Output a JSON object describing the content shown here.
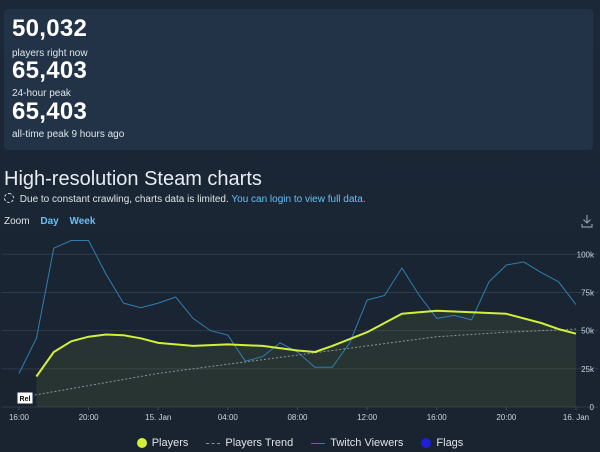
{
  "stats": {
    "current": {
      "value": "50,032",
      "label": "players right now"
    },
    "peak24": {
      "value": "65,403",
      "label": "24-hour peak"
    },
    "alltime": {
      "value": "65,403",
      "label": "all-time peak 9 hours ago"
    }
  },
  "section": {
    "title": "High-resolution Steam charts",
    "notice": "Due to constant crawling, charts data is limited.",
    "login_link": "You can login to view full data."
  },
  "zoom": {
    "label": "Zoom",
    "options": [
      "Day",
      "Week"
    ]
  },
  "colors": {
    "players": "#d2f03a",
    "trend": "#8a93a0",
    "twitch": "#2f7fb0",
    "flags": "#1f1fd6",
    "link": "#66c0f4"
  },
  "icons": {
    "download": "download-icon",
    "loading": "spinner-icon"
  },
  "chart_data": {
    "type": "line",
    "x_ticks": [
      "16:00",
      "20:00",
      "15. Jan",
      "04:00",
      "08:00",
      "12:00",
      "16:00",
      "20:00",
      "16. Jan"
    ],
    "x_range_hours": [
      0,
      32
    ],
    "y_ticks": [
      "0",
      "25k",
      "50k",
      "75k",
      "100k"
    ],
    "ylim": [
      0,
      110000
    ],
    "grid": true,
    "legend_position": "bottom",
    "flag_label": "Rel",
    "series": [
      {
        "name": "Players",
        "x": [
          1,
          2,
          3,
          4,
          5,
          6,
          7,
          8,
          10,
          12,
          14,
          16,
          17,
          18,
          20,
          21,
          22,
          24,
          26,
          28,
          30,
          31,
          32
        ],
        "values": [
          20000,
          36000,
          43000,
          46000,
          47500,
          47000,
          45000,
          42000,
          40000,
          41000,
          40000,
          37000,
          36000,
          40000,
          49000,
          55000,
          61000,
          63000,
          62000,
          61000,
          55000,
          51000,
          48000
        ]
      },
      {
        "name": "Players Trend",
        "x": [
          0,
          4,
          8,
          12,
          16,
          20,
          24,
          28,
          32
        ],
        "values": [
          6000,
          14000,
          22000,
          28000,
          34000,
          40000,
          46000,
          49000,
          51000
        ]
      },
      {
        "name": "Twitch Viewers",
        "x": [
          0,
          1,
          2,
          3,
          4,
          5,
          6,
          7,
          8,
          9,
          10,
          11,
          12,
          13,
          14,
          15,
          16,
          17,
          18,
          19,
          20,
          21,
          22,
          23,
          24,
          25,
          26,
          27,
          28,
          29,
          30,
          31,
          32
        ],
        "values": [
          22000,
          45000,
          104000,
          109000,
          109000,
          87000,
          68000,
          65000,
          68000,
          72000,
          58000,
          50000,
          47000,
          30000,
          33000,
          42000,
          36000,
          26000,
          26000,
          42000,
          70000,
          73000,
          91000,
          73000,
          58000,
          60000,
          57000,
          82000,
          93000,
          95000,
          88000,
          82000,
          67000
        ]
      },
      {
        "name": "Flags",
        "x": [],
        "values": []
      }
    ]
  }
}
